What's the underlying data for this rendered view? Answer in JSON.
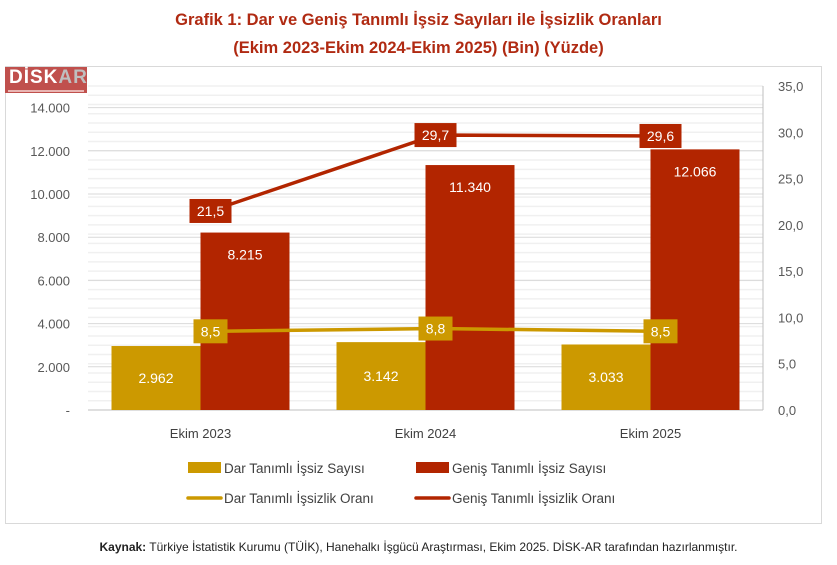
{
  "title": {
    "line1": "Grafik 1: Dar ve Geniş Tanımlı İşsiz Sayıları ile İşsizlik Oranları",
    "line2": "(Ekim 2023-Ekim 2024-Ekim 2025) (Bin) (Yüzde)"
  },
  "logo": {
    "text": "DİSK-AR"
  },
  "source": {
    "label": "Kaynak:",
    "text": " Türkiye İstatistik Kurumu (TÜİK), Hanehalkı İşgücü Araştırması, Ekim 2025. DİSK-AR tarafından hazırlanmıştır."
  },
  "chart_data": {
    "type": "bar+line",
    "categories": [
      "Ekim 2023",
      "Ekim 2024",
      "Ekim 2025"
    ],
    "bar_series": [
      {
        "name": "Dar Tanımlı İşsiz Sayısı",
        "values": [
          2962,
          3142,
          3033
        ],
        "labels": [
          "2.962",
          "3.142",
          "3.033"
        ],
        "color": "#cc9900"
      },
      {
        "name": "Geniş Tanımlı İşsiz Sayısı",
        "values": [
          8215,
          11340,
          12066
        ],
        "labels": [
          "8.215",
          "11.340",
          "12.066"
        ],
        "color": "#b22500"
      }
    ],
    "line_series": [
      {
        "name": "Dar Tanımlı İşsizlik Oranı",
        "values": [
          8.5,
          8.8,
          8.5
        ],
        "labels": [
          "8,5",
          "8,8",
          "8,5"
        ],
        "color": "#cc9900"
      },
      {
        "name": "Geniş Tanımlı İşsizlik Oranı",
        "values": [
          21.5,
          29.7,
          29.6
        ],
        "labels": [
          "21,5",
          "29,7",
          "29,6"
        ],
        "color": "#b22500"
      }
    ],
    "left_axis": {
      "ylim": [
        0,
        15000
      ],
      "ticks": [
        "-",
        "2.000",
        "4.000",
        "6.000",
        "8.000",
        "10.000",
        "12.000",
        "14.000"
      ]
    },
    "right_axis": {
      "ylim": [
        0,
        35
      ],
      "ticks": [
        "0,0",
        "5,0",
        "10,0",
        "15,0",
        "20,0",
        "25,0",
        "30,0",
        "35,0"
      ]
    },
    "grid": true,
    "legend": "bottom"
  }
}
